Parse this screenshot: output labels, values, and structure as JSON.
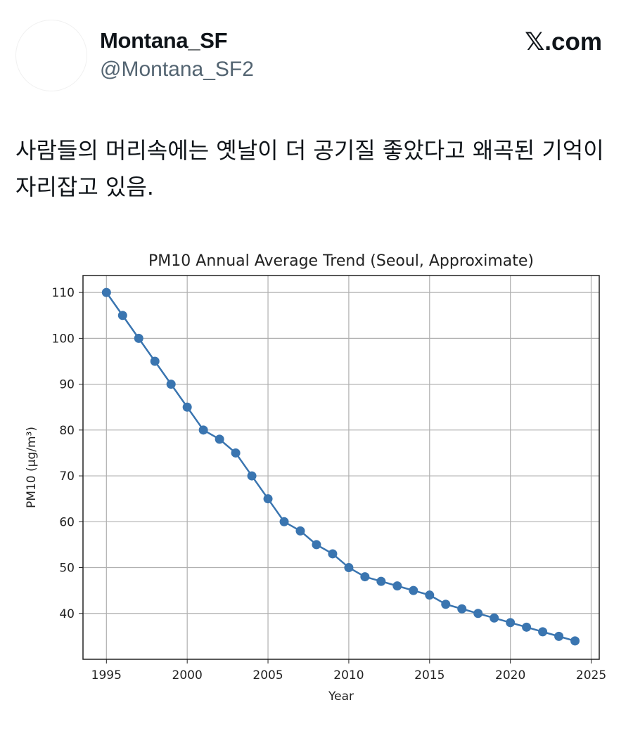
{
  "post": {
    "display_name": "Montana_SF",
    "handle": "@Montana_SF2",
    "brand": "𝕏.com",
    "text": "사람들의 머리속에는 옛날이 더 공기질 좋았다고 왜곡된 기억이 자리잡고 있음."
  },
  "chart_data": {
    "type": "line",
    "title": "PM10 Annual Average Trend (Seoul, Approximate)",
    "xlabel": "Year",
    "ylabel": "PM10 (μg/m³)",
    "x": [
      1995,
      1996,
      1997,
      1998,
      1999,
      2000,
      2001,
      2002,
      2003,
      2004,
      2005,
      2006,
      2007,
      2008,
      2009,
      2010,
      2011,
      2012,
      2013,
      2014,
      2015,
      2016,
      2017,
      2018,
      2019,
      2020,
      2021,
      2022,
      2023,
      2024
    ],
    "values": [
      110,
      105,
      100,
      95,
      90,
      85,
      80,
      78,
      75,
      70,
      65,
      60,
      58,
      55,
      53,
      50,
      48,
      47,
      46,
      45,
      44,
      42,
      41,
      40,
      39,
      38,
      37,
      36,
      35,
      34
    ],
    "xticks": [
      1995,
      2000,
      2005,
      2010,
      2015,
      2020,
      2025
    ],
    "yticks": [
      40,
      50,
      60,
      70,
      80,
      90,
      100,
      110
    ],
    "xlim": [
      1993.55,
      2025.5
    ],
    "ylim": [
      30.0,
      113.7
    ],
    "grid": true,
    "marker": "circle",
    "color": "#3a75b0"
  }
}
